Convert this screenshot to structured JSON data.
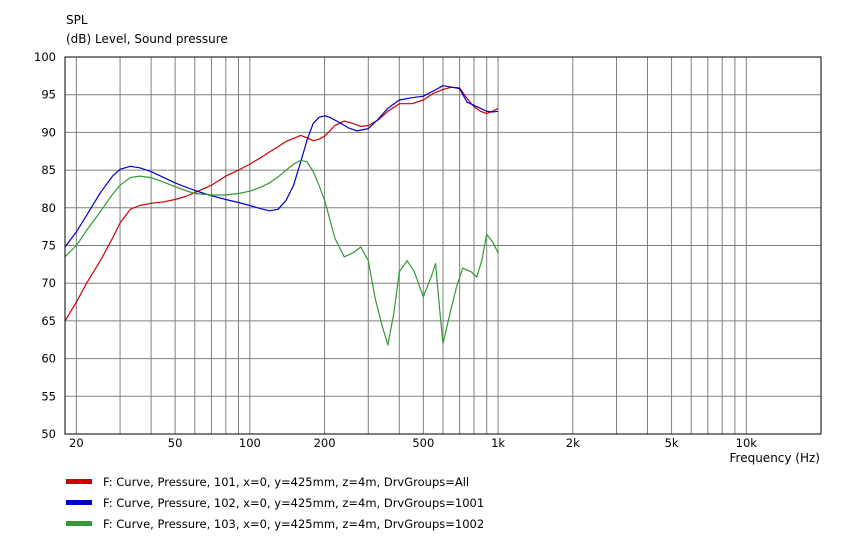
{
  "chart_data": {
    "type": "line",
    "title": "SPL",
    "ylabel": "(dB)  Level, Sound pressure",
    "xlabel": "Frequency  (Hz)",
    "x_scale": "log",
    "xlim": [
      18,
      20000
    ],
    "ylim": [
      50,
      100
    ],
    "grid": true,
    "legend_position": "bottom-left",
    "y_ticks": [
      50,
      55,
      60,
      65,
      70,
      75,
      80,
      85,
      90,
      95,
      100
    ],
    "x_ticks": [
      {
        "value": 20,
        "label": "20"
      },
      {
        "value": 50,
        "label": "50"
      },
      {
        "value": 100,
        "label": "100"
      },
      {
        "value": 200,
        "label": "200"
      },
      {
        "value": 500,
        "label": "500"
      },
      {
        "value": 1000,
        "label": "1k"
      },
      {
        "value": 2000,
        "label": "2k"
      },
      {
        "value": 5000,
        "label": "5k"
      },
      {
        "value": 10000,
        "label": "10k"
      }
    ],
    "series": [
      {
        "name": "F: Curve, Pressure, 101, x=0, y=425mm, z=4m, DrvGroups=All",
        "color": "#cc0000",
        "points": [
          [
            18,
            65
          ],
          [
            20,
            67.5
          ],
          [
            22,
            70
          ],
          [
            25,
            73
          ],
          [
            28,
            76
          ],
          [
            30,
            78
          ],
          [
            33,
            79.8
          ],
          [
            36,
            80.3
          ],
          [
            40,
            80.6
          ],
          [
            45,
            80.8
          ],
          [
            50,
            81.1
          ],
          [
            55,
            81.5
          ],
          [
            60,
            82
          ],
          [
            70,
            83
          ],
          [
            80,
            84.2
          ],
          [
            90,
            85
          ],
          [
            100,
            85.8
          ],
          [
            110,
            86.6
          ],
          [
            120,
            87.4
          ],
          [
            130,
            88.1
          ],
          [
            140,
            88.8
          ],
          [
            150,
            89.2
          ],
          [
            160,
            89.6
          ],
          [
            170,
            89.3
          ],
          [
            180,
            88.9
          ],
          [
            190,
            89.1
          ],
          [
            200,
            89.5
          ],
          [
            210,
            90.2
          ],
          [
            220,
            90.9
          ],
          [
            240,
            91.5
          ],
          [
            260,
            91.2
          ],
          [
            280,
            90.8
          ],
          [
            300,
            90.9
          ],
          [
            330,
            91.7
          ],
          [
            360,
            92.8
          ],
          [
            400,
            93.8
          ],
          [
            450,
            93.8
          ],
          [
            500,
            94.3
          ],
          [
            550,
            95.2
          ],
          [
            600,
            95.7
          ],
          [
            650,
            96
          ],
          [
            700,
            95.9
          ],
          [
            750,
            94.5
          ],
          [
            800,
            93.4
          ],
          [
            850,
            92.8
          ],
          [
            900,
            92.5
          ],
          [
            950,
            92.8
          ],
          [
            1000,
            93.2
          ]
        ]
      },
      {
        "name": "F: Curve, Pressure, 102, x=0, y=425mm, z=4m, DrvGroups=1001",
        "color": "#0000cc",
        "points": [
          [
            18,
            74.8
          ],
          [
            20,
            76.8
          ],
          [
            22,
            79
          ],
          [
            25,
            82
          ],
          [
            28,
            84.2
          ],
          [
            30,
            85.1
          ],
          [
            33,
            85.5
          ],
          [
            36,
            85.3
          ],
          [
            40,
            84.8
          ],
          [
            45,
            84
          ],
          [
            50,
            83.3
          ],
          [
            60,
            82.3
          ],
          [
            70,
            81.6
          ],
          [
            80,
            81.1
          ],
          [
            90,
            80.7
          ],
          [
            100,
            80.3
          ],
          [
            110,
            79.9
          ],
          [
            120,
            79.6
          ],
          [
            130,
            79.8
          ],
          [
            140,
            81
          ],
          [
            150,
            83
          ],
          [
            160,
            86
          ],
          [
            170,
            89
          ],
          [
            180,
            91.2
          ],
          [
            190,
            92
          ],
          [
            200,
            92.2
          ],
          [
            210,
            92
          ],
          [
            230,
            91.3
          ],
          [
            250,
            90.6
          ],
          [
            270,
            90.2
          ],
          [
            300,
            90.5
          ],
          [
            330,
            91.8
          ],
          [
            360,
            93.2
          ],
          [
            400,
            94.3
          ],
          [
            450,
            94.6
          ],
          [
            500,
            94.8
          ],
          [
            550,
            95.5
          ],
          [
            600,
            96.2
          ],
          [
            650,
            96
          ],
          [
            700,
            95.8
          ],
          [
            750,
            94
          ],
          [
            800,
            93.6
          ],
          [
            850,
            93.2
          ],
          [
            900,
            92.8
          ],
          [
            950,
            92.7
          ],
          [
            1000,
            92.8
          ]
        ]
      },
      {
        "name": "F: Curve, Pressure, 103, x=0, y=425mm, z=4m, DrvGroups=1002",
        "color": "#339933",
        "points": [
          [
            18,
            73.5
          ],
          [
            20,
            75
          ],
          [
            22,
            77
          ],
          [
            25,
            79.5
          ],
          [
            28,
            81.8
          ],
          [
            30,
            83
          ],
          [
            33,
            84
          ],
          [
            36,
            84.2
          ],
          [
            40,
            84
          ],
          [
            45,
            83.4
          ],
          [
            50,
            82.8
          ],
          [
            55,
            82.3
          ],
          [
            60,
            81.9
          ],
          [
            70,
            81.7
          ],
          [
            80,
            81.7
          ],
          [
            90,
            81.9
          ],
          [
            100,
            82.2
          ],
          [
            110,
            82.7
          ],
          [
            120,
            83.3
          ],
          [
            130,
            84.1
          ],
          [
            140,
            85
          ],
          [
            150,
            85.8
          ],
          [
            160,
            86.3
          ],
          [
            170,
            86.1
          ],
          [
            180,
            84.8
          ],
          [
            190,
            83
          ],
          [
            200,
            81
          ],
          [
            210,
            78.5
          ],
          [
            220,
            76
          ],
          [
            240,
            73.5
          ],
          [
            260,
            74
          ],
          [
            280,
            74.8
          ],
          [
            300,
            73
          ],
          [
            320,
            68
          ],
          [
            340,
            64.5
          ],
          [
            360,
            61.8
          ],
          [
            380,
            66
          ],
          [
            400,
            71.5
          ],
          [
            430,
            73
          ],
          [
            460,
            71.5
          ],
          [
            500,
            68.2
          ],
          [
            540,
            71
          ],
          [
            560,
            72.6
          ],
          [
            580,
            67
          ],
          [
            600,
            62
          ],
          [
            640,
            66
          ],
          [
            680,
            69.5
          ],
          [
            720,
            72
          ],
          [
            780,
            71.5
          ],
          [
            820,
            70.8
          ],
          [
            860,
            73
          ],
          [
            900,
            76.5
          ],
          [
            950,
            75.5
          ],
          [
            1000,
            74
          ]
        ]
      }
    ]
  }
}
